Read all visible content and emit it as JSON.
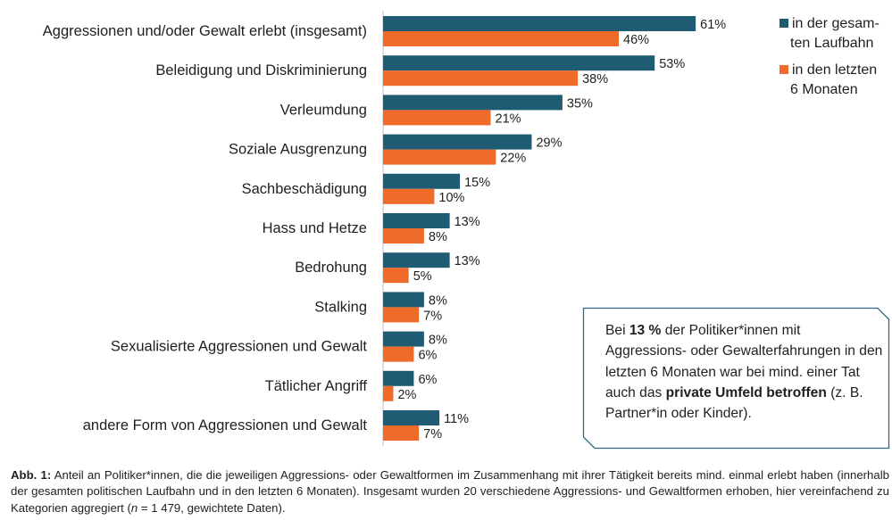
{
  "chart_data": {
    "type": "bar",
    "orientation": "horizontal",
    "categories": [
      "Aggressionen und/oder Gewalt erlebt (insgesamt)",
      "Beleidigung und Diskriminierung",
      "Verleumdung",
      "Soziale Ausgrenzung",
      "Sachbeschädigung",
      "Hass und Hetze",
      "Bedrohung",
      "Stalking",
      "Sexualisierte Aggressionen und Gewalt",
      "Tätlicher Angriff",
      "andere Form von Aggressionen und Gewalt"
    ],
    "series": [
      {
        "name": "in der gesamten Laufbahn",
        "name_lines": [
          "in der gesam-",
          "ten Laufbahn"
        ],
        "color": "#1f5c73",
        "values": [
          61,
          53,
          35,
          29,
          15,
          13,
          13,
          8,
          8,
          6,
          11
        ],
        "labels": [
          "61%",
          "53%",
          "35%",
          "29%",
          "15%",
          "13%",
          "13%",
          "8%",
          "8%",
          "6%",
          "11%"
        ]
      },
      {
        "name": "in den letzten 6 Monaten",
        "name_lines": [
          "in den letzten",
          "6 Monaten"
        ],
        "color": "#f06a2a",
        "values": [
          46,
          38,
          21,
          22,
          10,
          8,
          5,
          7,
          6,
          2,
          7
        ],
        "labels": [
          "46%",
          "38%",
          "21%",
          "22%",
          "10%",
          "8%",
          "5%",
          "7%",
          "6%",
          "2%",
          "7%"
        ]
      }
    ],
    "xlim": [
      0,
      61
    ],
    "legend_position": "top-right",
    "grid": false,
    "axis_color": "#bfbfbf"
  },
  "callout": {
    "part1": "Bei ",
    "bold1": "13 %",
    "part2": " der Politiker*innen mit Aggressions- oder Gewalterfahrungen in den letzten 6 Monaten war bei mind. einer Tat auch das ",
    "bold2": "private Umfeld betroffen",
    "part3": " (z. B. Partner*in oder Kinder).",
    "border_color": "#2e6b86"
  },
  "caption": {
    "label": "Abb. 1:",
    "text1": " Anteil an Politiker*innen, die die jeweiligen Aggressions- oder Gewaltformen im Zusammenhang mit ihrer Tätigkeit bereits mind. einmal erlebt haben (innerhalb der gesamten politischen Laufbahn und in den letzten 6 Monaten). Insgesamt wurden 20 verschiedene Aggressions- und Gewaltformen erhoben, hier vereinfachend zu Kategorien aggregiert (",
    "n_symbol": "n",
    "text2": " = 1 479, gewichtete Daten)."
  }
}
